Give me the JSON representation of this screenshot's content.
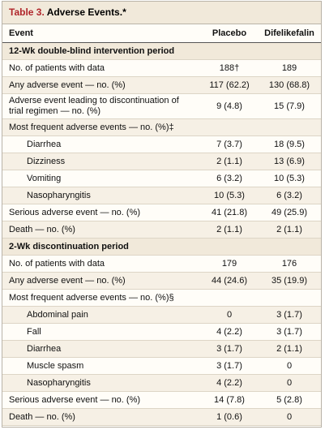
{
  "title_label": "Table 3.",
  "title": "Adverse Events.*",
  "header": {
    "event": "Event",
    "placebo": "Placebo",
    "difelikefalin": "Difelikefalin"
  },
  "sections": [
    {
      "title": "12-Wk double-blind intervention period",
      "rows": [
        {
          "label": "No. of patients with data",
          "placebo": "188†",
          "difelikefalin": "189"
        },
        {
          "label": "Any adverse event — no. (%)",
          "placebo": "117 (62.2)",
          "difelikefalin": "130 (68.8)"
        },
        {
          "label": "Adverse event leading to discontinuation of trial regimen — no. (%)",
          "placebo": "9 (4.8)",
          "difelikefalin": "15 (7.9)"
        },
        {
          "label": "Most frequent adverse events — no. (%)‡",
          "items": [
            {
              "label": "Diarrhea",
              "placebo": "7 (3.7)",
              "difelikefalin": "18 (9.5)"
            },
            {
              "label": "Dizziness",
              "placebo": "2 (1.1)",
              "difelikefalin": "13 (6.9)"
            },
            {
              "label": "Vomiting",
              "placebo": "6 (3.2)",
              "difelikefalin": "10 (5.3)"
            },
            {
              "label": "Nasopharyngitis",
              "placebo": "10 (5.3)",
              "difelikefalin": "6 (3.2)"
            }
          ]
        },
        {
          "label": "Serious adverse event — no. (%)",
          "placebo": "41 (21.8)",
          "difelikefalin": "49 (25.9)"
        },
        {
          "label": "Death — no. (%)",
          "placebo": "2 (1.1)",
          "difelikefalin": "2 (1.1)"
        }
      ]
    },
    {
      "title": "2-Wk discontinuation period",
      "rows": [
        {
          "label": "No. of patients with data",
          "placebo": "179",
          "difelikefalin": "176"
        },
        {
          "label": "Any adverse event — no. (%)",
          "placebo": "44 (24.6)",
          "difelikefalin": "35 (19.9)"
        },
        {
          "label": "Most frequent adverse events — no. (%)§",
          "items": [
            {
              "label": "Abdominal pain",
              "placebo": "0",
              "difelikefalin": "3 (1.7)"
            },
            {
              "label": "Fall",
              "placebo": "4 (2.2)",
              "difelikefalin": "3 (1.7)"
            },
            {
              "label": "Diarrhea",
              "placebo": "3 (1.7)",
              "difelikefalin": "2 (1.1)"
            },
            {
              "label": "Muscle spasm",
              "placebo": "3 (1.7)",
              "difelikefalin": "0"
            },
            {
              "label": "Nasopharyngitis",
              "placebo": "4 (2.2)",
              "difelikefalin": "0"
            }
          ]
        },
        {
          "label": "Serious adverse event — no. (%)",
          "placebo": "14 (7.8)",
          "difelikefalin": "5 (2.8)"
        },
        {
          "label": "Death — no. (%)",
          "placebo": "1 (0.6)",
          "difelikefalin": "0"
        }
      ]
    }
  ]
}
